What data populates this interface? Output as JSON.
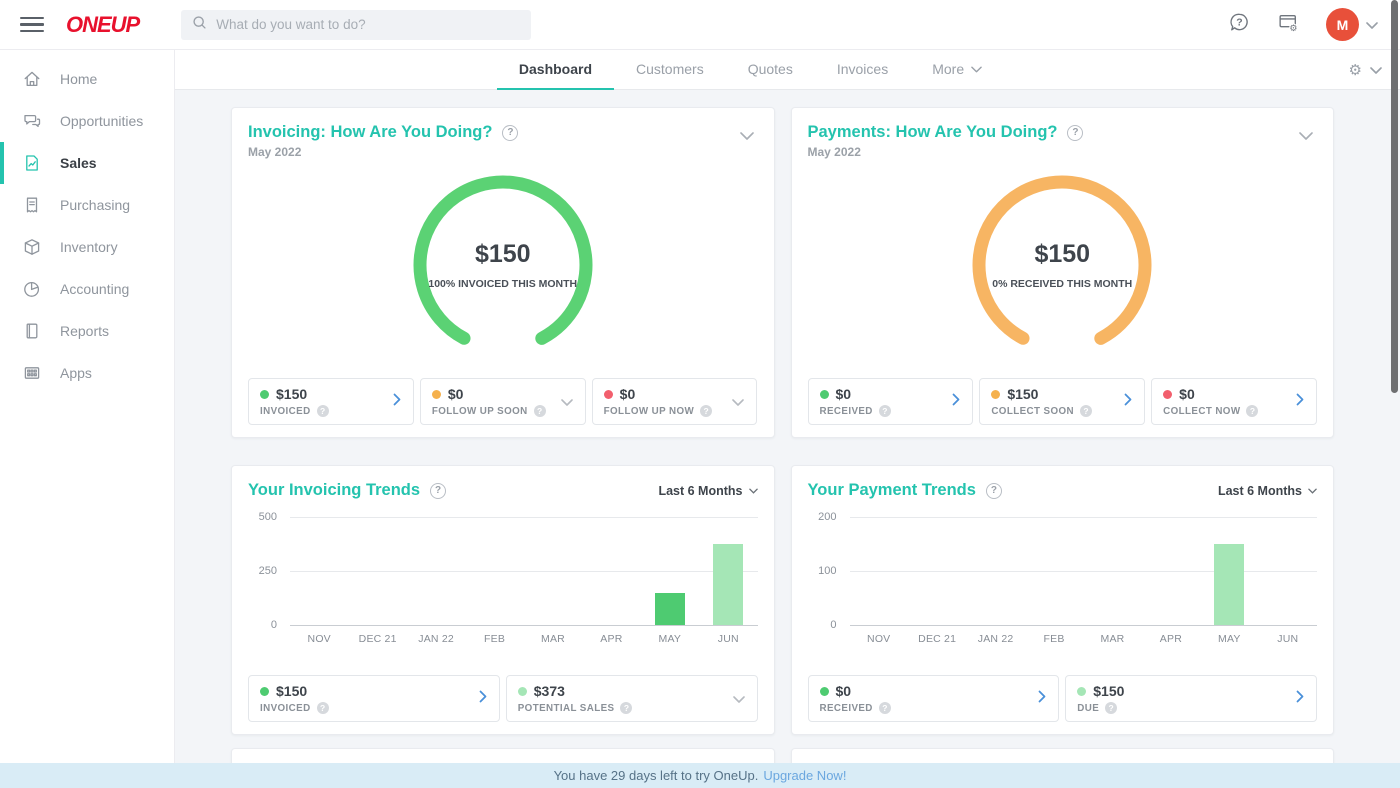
{
  "app": {
    "logo_text": "ONEUP"
  },
  "header": {
    "search_placeholder": "What do you want to do?",
    "avatar_initial": "M"
  },
  "sidebar": {
    "items": [
      {
        "label": "Home",
        "icon": "home-icon",
        "active": false
      },
      {
        "label": "Opportunities",
        "icon": "opportunities-icon",
        "active": false
      },
      {
        "label": "Sales",
        "icon": "sales-icon",
        "active": true
      },
      {
        "label": "Purchasing",
        "icon": "purchasing-icon",
        "active": false
      },
      {
        "label": "Inventory",
        "icon": "inventory-icon",
        "active": false
      },
      {
        "label": "Accounting",
        "icon": "accounting-icon",
        "active": false
      },
      {
        "label": "Reports",
        "icon": "reports-icon",
        "active": false
      },
      {
        "label": "Apps",
        "icon": "apps-icon",
        "active": false
      }
    ]
  },
  "tabs": {
    "items": [
      {
        "label": "Dashboard",
        "active": true,
        "dropdown": false
      },
      {
        "label": "Customers",
        "active": false,
        "dropdown": false
      },
      {
        "label": "Quotes",
        "active": false,
        "dropdown": false
      },
      {
        "label": "Invoices",
        "active": false,
        "dropdown": false
      },
      {
        "label": "More",
        "active": false,
        "dropdown": true
      }
    ]
  },
  "gauges": [
    {
      "title": "Invoicing: How Are You Doing?",
      "subtitle": "May 2022",
      "center_value": "$150",
      "center_caption": "100% INVOICED THIS MONTH",
      "ring_color": "#5bd274",
      "stats": [
        {
          "dot_color": "#4ecb71",
          "value": "$150",
          "label": "INVOICED",
          "chevron": "right"
        },
        {
          "dot_color": "#f5b14d",
          "value": "$0",
          "label": "FOLLOW UP SOON",
          "chevron": "down"
        },
        {
          "dot_color": "#f25f6d",
          "value": "$0",
          "label": "FOLLOW UP NOW",
          "chevron": "down"
        }
      ]
    },
    {
      "title": "Payments: How Are You Doing?",
      "subtitle": "May 2022",
      "center_value": "$150",
      "center_caption": "0% RECEIVED THIS MONTH",
      "ring_color": "#f7b563",
      "stats": [
        {
          "dot_color": "#4ecb71",
          "value": "$0",
          "label": "RECEIVED",
          "chevron": "right"
        },
        {
          "dot_color": "#f5b14d",
          "value": "$150",
          "label": "COLLECT SOON",
          "chevron": "right"
        },
        {
          "dot_color": "#f25f6d",
          "value": "$0",
          "label": "COLLECT NOW",
          "chevron": "right"
        }
      ]
    }
  ],
  "trends": [
    {
      "title": "Your Invoicing Trends",
      "range_label": "Last 6 Months",
      "stats": [
        {
          "dot_color": "#4ecb71",
          "value": "$150",
          "label": "INVOICED",
          "chevron": "right"
        },
        {
          "dot_color": "#a5e6b6",
          "value": "$373",
          "label": "POTENTIAL SALES",
          "chevron": "down"
        }
      ]
    },
    {
      "title": "Your Payment Trends",
      "range_label": "Last 6 Months",
      "stats": [
        {
          "dot_color": "#4ecb71",
          "value": "$0",
          "label": "RECEIVED",
          "chevron": "right"
        },
        {
          "dot_color": "#a5e6b6",
          "value": "$150",
          "label": "DUE",
          "chevron": "right"
        }
      ]
    }
  ],
  "chart_data": [
    {
      "type": "bar",
      "title": "Your Invoicing Trends",
      "categories": [
        "NOV",
        "DEC 21",
        "JAN 22",
        "FEB",
        "MAR",
        "APR",
        "MAY",
        "JUN"
      ],
      "values": [
        0,
        0,
        0,
        0,
        0,
        0,
        150,
        373
      ],
      "bar_colors": [
        "",
        "",
        "",
        "",
        "",
        "",
        "#4ecb71",
        "#a5e6b6"
      ],
      "ylim": [
        0,
        500
      ],
      "yticks": [
        0,
        250,
        500
      ],
      "xlabel": "",
      "ylabel": "",
      "grid": true,
      "legend": false
    },
    {
      "type": "bar",
      "title": "Your Payment Trends",
      "categories": [
        "NOV",
        "DEC 21",
        "JAN 22",
        "FEB",
        "MAR",
        "APR",
        "MAY",
        "JUN"
      ],
      "values": [
        0,
        0,
        0,
        0,
        0,
        0,
        150,
        0
      ],
      "bar_colors": [
        "",
        "",
        "",
        "",
        "",
        "",
        "#a5e6b6",
        ""
      ],
      "ylim": [
        0,
        200
      ],
      "yticks": [
        0,
        100,
        200
      ],
      "xlabel": "",
      "ylabel": "",
      "grid": true,
      "legend": false
    }
  ],
  "banner": {
    "text": "You have 29 days left to try OneUp.",
    "link_label": "Upgrade Now!"
  }
}
